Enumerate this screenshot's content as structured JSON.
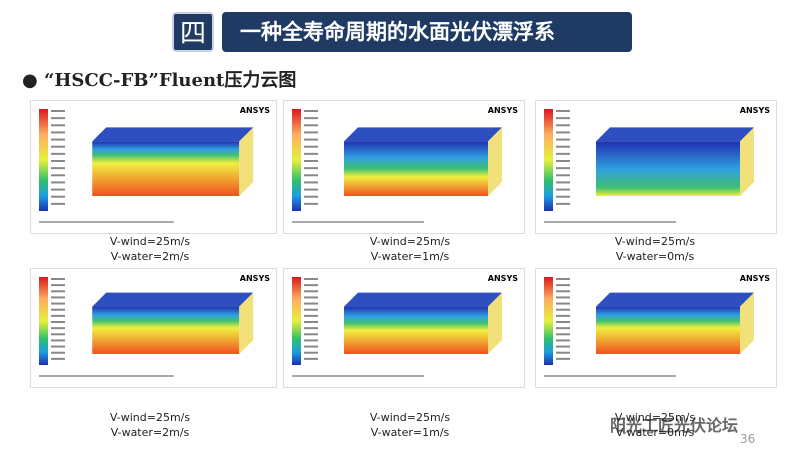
{
  "header": {
    "number": "四",
    "title": "一种全寿命周期的水面光伏漂浮系"
  },
  "section": {
    "title": "“HSCC-FB”Fluent压力云图"
  },
  "panels": [
    {
      "logo": "ANSYS",
      "caption": [
        "V-wind=25m/s",
        "V-water=2m/s"
      ]
    },
    {
      "logo": "ANSYS",
      "caption": [
        "V-wind=25m/s",
        "V-water=1m/s"
      ]
    },
    {
      "logo": "ANSYS",
      "caption": [
        "V-wind=25m/s",
        "V-water=0m/s"
      ]
    },
    {
      "logo": "ANSYS",
      "caption": [
        "V-wind=25m/s",
        "V-water=2m/s"
      ]
    },
    {
      "logo": "ANSYS",
      "caption": [
        "V-wind=25m/s",
        "V-water=1m/s"
      ]
    },
    {
      "logo": "ANSYS",
      "caption": [
        "V-wind=25m/s",
        "V-water=0m/s"
      ]
    }
  ],
  "page_number": "36",
  "watermark": "阳光工匠光伏论坛"
}
